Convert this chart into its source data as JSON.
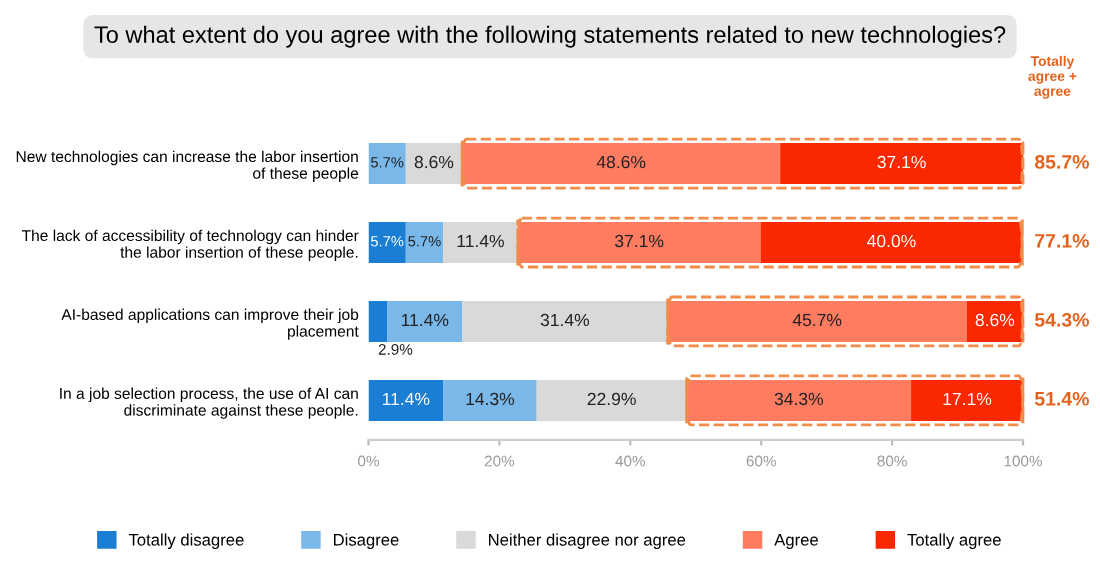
{
  "chart_data": {
    "type": "bar",
    "orientation": "horizontal",
    "stacked": true,
    "title": "To what extent do you agree with the following statements related to new technologies?",
    "categories": [
      "New technologies can increase the labor insertion\nof these people",
      "The lack of accessibility of technology can hinder\nthe labor insertion of these people.",
      "AI-based applications can improve their job\nplacement",
      "In a job selection process, the use of AI can\ndiscriminate against these people."
    ],
    "series": [
      {
        "name": "Totally disagree",
        "color": "#1a7fd4",
        "values": [
          0,
          5.7,
          2.9,
          11.4
        ],
        "value_labels": [
          null,
          "5.7%",
          "2.9%",
          "11.4%"
        ]
      },
      {
        "name": "Disagree",
        "color": "#7ab8ea",
        "values": [
          5.7,
          5.7,
          11.4,
          14.3
        ],
        "value_labels": [
          "5.7%",
          "5.7%",
          "11.4%",
          "14.3%"
        ]
      },
      {
        "name": "Neither disagree nor agree",
        "color": "#d9d9d9",
        "values": [
          8.6,
          11.4,
          31.4,
          22.9
        ],
        "value_labels": [
          "8.6%",
          "11.4%",
          "31.4%",
          "22.9%"
        ]
      },
      {
        "name": "Agree",
        "color": "#ff7c60",
        "values": [
          48.6,
          37.1,
          45.7,
          34.3
        ],
        "value_labels": [
          "48.6%",
          "37.1%",
          "45.7%",
          "34.3%"
        ]
      },
      {
        "name": "Totally agree",
        "color": "#fa2800",
        "values": [
          37.1,
          40.0,
          8.6,
          17.1
        ],
        "value_labels": [
          "37.1%",
          "40.0%",
          "8.6%",
          "17.1%"
        ]
      }
    ],
    "xlim": [
      0,
      100
    ],
    "xticks": [
      {
        "value": 0,
        "label": "0%"
      },
      {
        "value": 20,
        "label": "20%"
      },
      {
        "value": 40,
        "label": "40%"
      },
      {
        "value": 60,
        "label": "60%"
      },
      {
        "value": 80,
        "label": "80%"
      },
      {
        "value": 100,
        "label": "100%"
      }
    ],
    "legend": "bottom",
    "grid": false,
    "annotations": [
      "Totally\nagree +\nagree",
      "85.7%",
      "77.1%",
      "54.3%",
      "51.4%"
    ]
  }
}
